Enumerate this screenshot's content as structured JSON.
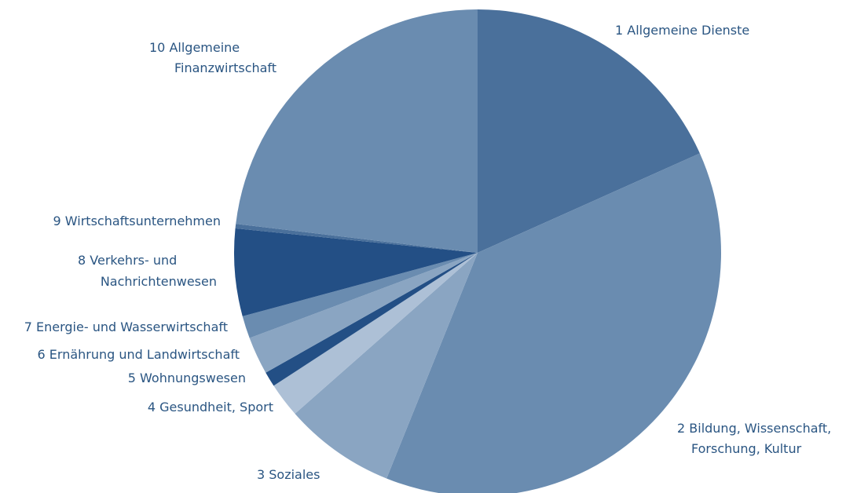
{
  "chart_data": {
    "type": "pie",
    "categories": [
      [
        "1 Allgemeine Dienste"
      ],
      [
        "2 Bildung, Wissenschaft,",
        "Forschung, Kultur"
      ],
      [
        "3 Soziales"
      ],
      [
        "4 Gesundheit, Sport"
      ],
      [
        "5 Wohnungswesen"
      ],
      [
        "6 Ernährung und Landwirtschaft"
      ],
      [
        "7 Energie- und Wasserwirtschaft"
      ],
      [
        "8 Verkehrs- und",
        "Nachrichtenwesen"
      ],
      [
        "9 Wirtschaftsunternehmen"
      ],
      [
        "10  Allgemeine",
        "Finanzwirtschaft"
      ]
    ],
    "values": [
      18.3,
      37.8,
      7.4,
      2.3,
      1.0,
      2.5,
      1.5,
      5.8,
      0.3,
      23.1
    ],
    "colors": [
      "#4a709b",
      "#6a8cb0",
      "#8aa5c2",
      "#adc0d6",
      "#234f85",
      "#8aa5c2",
      "#6a8cb0",
      "#234f85",
      "#4a709b",
      "#6a8cb0"
    ]
  }
}
